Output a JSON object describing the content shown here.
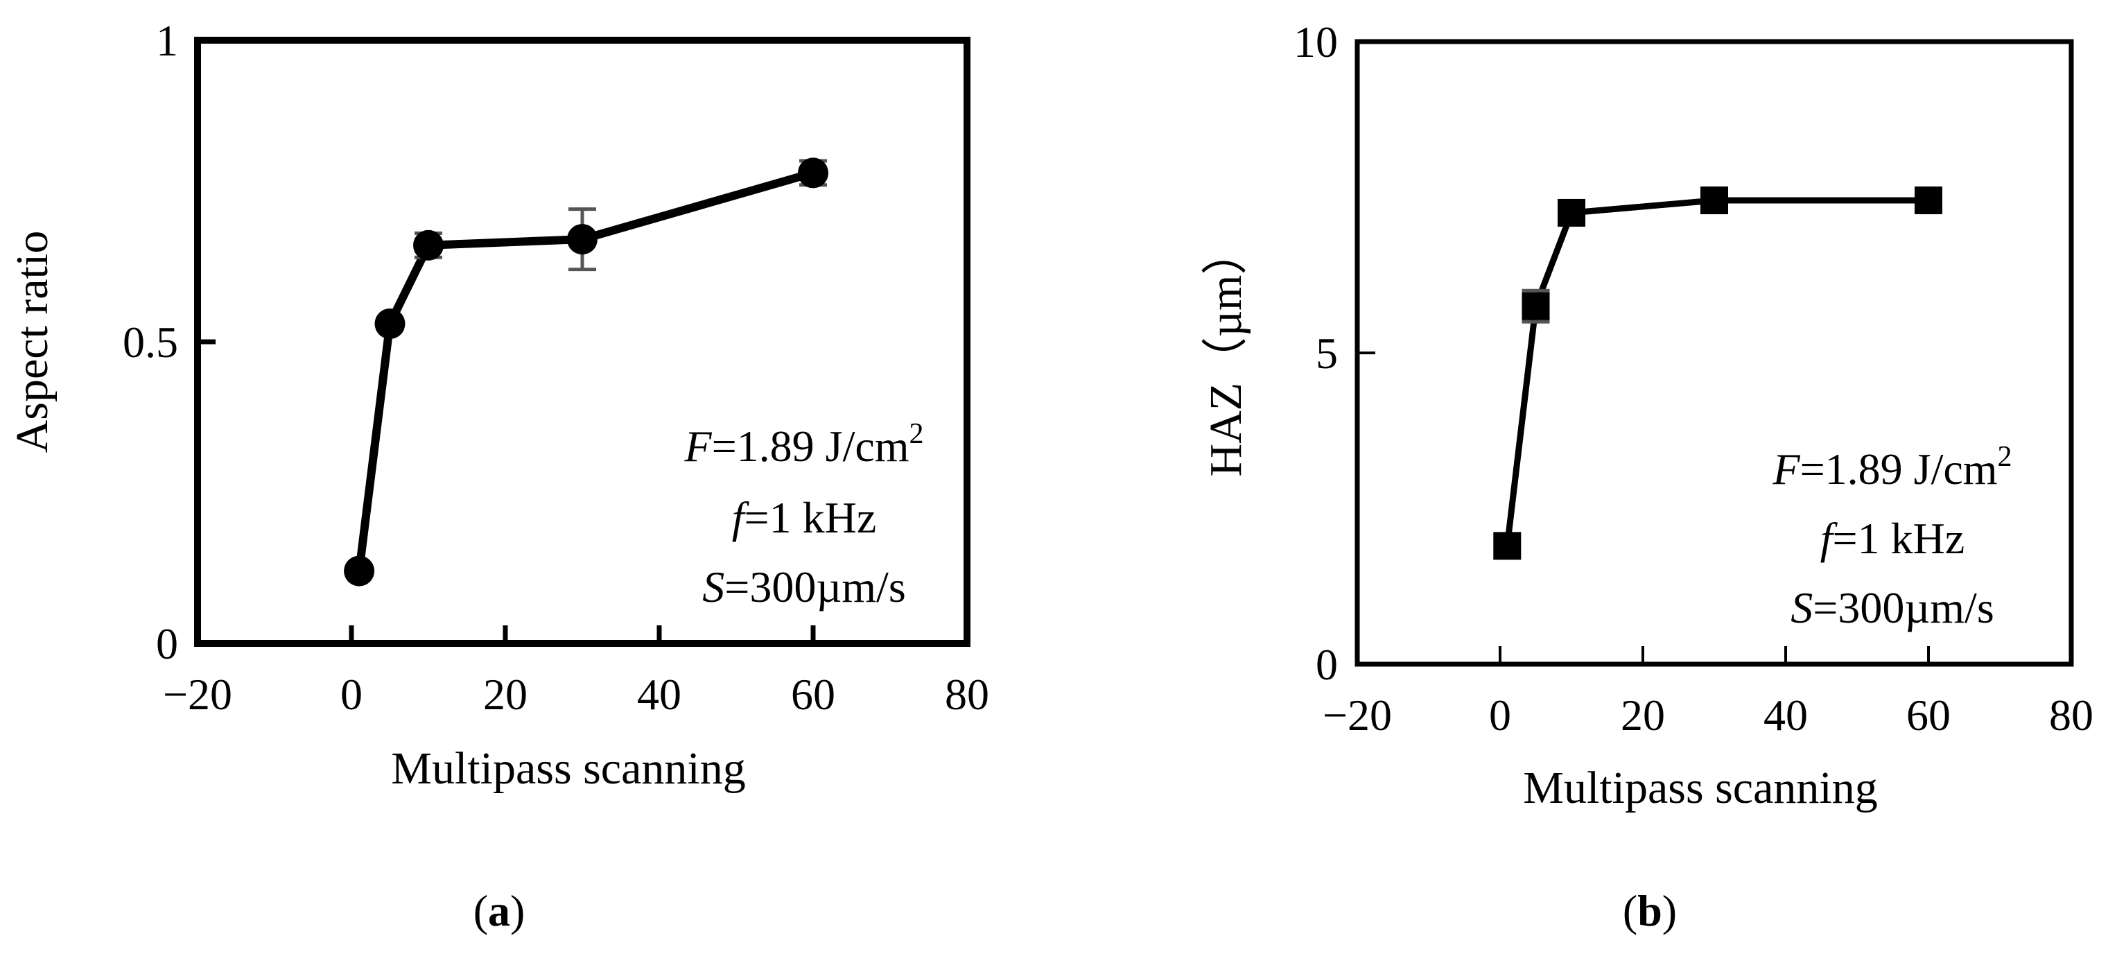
{
  "chart_data": [
    {
      "type": "line",
      "panel_label": "(a)",
      "xlabel": "Multipass scanning",
      "ylabel": "Aspect ratio",
      "xlim": [
        -20,
        80
      ],
      "ylim": [
        0,
        1
      ],
      "xticks": [
        "−20",
        "0",
        "20",
        "40",
        "60",
        "80"
      ],
      "yticks": [
        "0",
        "0.5",
        "1"
      ],
      "grid": false,
      "legend": "none",
      "marker": "circle",
      "line_color": "#000000",
      "errorbar_color": "#555555",
      "series": [
        {
          "x": [
            1,
            5,
            10,
            30,
            60
          ],
          "y": [
            0.12,
            0.53,
            0.66,
            0.67,
            0.78
          ],
          "yerr": [
            0,
            0,
            0.02,
            0.05,
            0.02
          ]
        }
      ],
      "annotations": [
        {
          "italic": "F",
          "text": "=1.89 J/cm",
          "sup": "2"
        },
        {
          "italic": "f",
          "text": "=1 kHz",
          "sup": ""
        },
        {
          "italic": "S",
          "text": "=300µm/s",
          "sup": ""
        }
      ]
    },
    {
      "type": "line",
      "panel_label": "(b)",
      "xlabel": "Multipass scanning",
      "ylabel": "HAZ（µm）",
      "xlim": [
        -20,
        80
      ],
      "ylim": [
        0,
        10
      ],
      "xticks": [
        "−20",
        "0",
        "20",
        "40",
        "60",
        "80"
      ],
      "yticks": [
        "0",
        "5",
        "10"
      ],
      "grid": false,
      "legend": "none",
      "marker": "square",
      "line_color": "#000000",
      "errorbar_color": "#555555",
      "series": [
        {
          "x": [
            1,
            5,
            10,
            30,
            60
          ],
          "y": [
            1.9,
            5.75,
            7.25,
            7.45,
            7.45
          ],
          "yerr": [
            0,
            0.25,
            0.15,
            0,
            0
          ]
        }
      ],
      "annotations": [
        {
          "italic": "F",
          "text": "=1.89 J/cm",
          "sup": "2"
        },
        {
          "italic": "f",
          "text": "=1 kHz",
          "sup": ""
        },
        {
          "italic": "S",
          "text": "=300µm/s",
          "sup": ""
        }
      ]
    }
  ]
}
